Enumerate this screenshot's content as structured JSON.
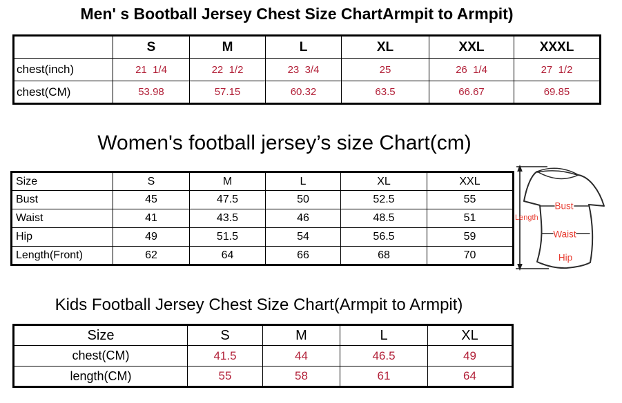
{
  "colors": {
    "table_value_red": "#b22038",
    "shirt_label_red": "#e73b2f",
    "text_black": "#000000",
    "outline_dark": "#2b2b2b"
  },
  "chart_data": [
    {
      "type": "table",
      "title": "Men' s Bootball Jersey Chest Size ChartArmpit to Armpit)",
      "header": [
        "",
        "S",
        "M",
        "L",
        "XL",
        "XXL",
        "XXXL"
      ],
      "rows": [
        [
          "chest(inch)",
          "21  1/4",
          "22  1/2",
          "23  3/4",
          "25",
          "26  1/4",
          "27  1/2"
        ],
        [
          "chest(CM)",
          "53.98",
          "57.15",
          "60.32",
          "63.5",
          "66.67",
          "69.85"
        ]
      ]
    },
    {
      "type": "table",
      "title": "Women's football jersey’s size Chart(cm)",
      "header": [
        "Size",
        "S",
        "M",
        "L",
        "XL",
        "XXL"
      ],
      "rows": [
        [
          "Bust",
          "45",
          "47.5",
          "50",
          "52.5",
          "55"
        ],
        [
          "Waist",
          "41",
          "43.5",
          "46",
          "48.5",
          "51"
        ],
        [
          "Hip",
          "49",
          "51.5",
          "54",
          "56.5",
          "59"
        ],
        [
          "Length(Front)",
          "62",
          "64",
          "66",
          "68",
          "70"
        ]
      ]
    },
    {
      "type": "table",
      "title": "Kids Football Jersey Chest Size Chart(Armpit to Armpit)",
      "header": [
        "Size",
        "S",
        "M",
        "L",
        "XL"
      ],
      "rows": [
        [
          "chest(CM)",
          "41.5",
          "44",
          "46.5",
          "49"
        ],
        [
          "length(CM)",
          "55",
          "58",
          "61",
          "64"
        ]
      ]
    }
  ],
  "shirt_diagram": {
    "length_label": "Length",
    "bust_label": "Bust",
    "waist_label": "Waist",
    "hip_label": "Hip"
  }
}
